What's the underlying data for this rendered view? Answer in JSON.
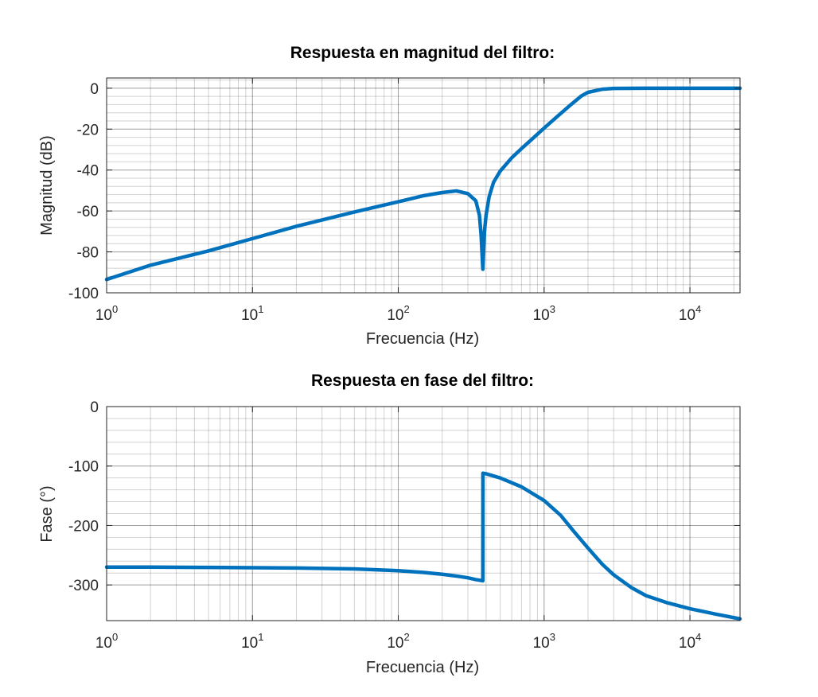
{
  "chart_data": [
    {
      "type": "line",
      "title": "Respuesta en magnitud del filtro:",
      "xlabel": "Frecuencia (Hz)",
      "ylabel": "Magnitud (dB)",
      "xscale": "log",
      "xlim": [
        1,
        22050
      ],
      "ylim": [
        -100,
        5
      ],
      "xticks": [
        {
          "value": 1,
          "base": "10",
          "exp": "0"
        },
        {
          "value": 10,
          "base": "10",
          "exp": "1"
        },
        {
          "value": 100,
          "base": "10",
          "exp": "2"
        },
        {
          "value": 1000,
          "base": "10",
          "exp": "3"
        },
        {
          "value": 10000,
          "base": "10",
          "exp": "4"
        }
      ],
      "yticks": [
        0,
        -20,
        -40,
        -60,
        -80,
        -100
      ],
      "ytick_labels": [
        "0",
        "-20",
        "-40",
        "-60",
        "-80",
        "-100"
      ],
      "grid": true,
      "color": "#0072BD",
      "series": [
        {
          "x": [
            1,
            2,
            5,
            10,
            20,
            50,
            100,
            150,
            200,
            250,
            300,
            340,
            360,
            370,
            380,
            390,
            400,
            420,
            450,
            500,
            600,
            700,
            800,
            1000,
            1200,
            1500,
            1800,
            2000,
            2500,
            3000,
            5000,
            10000,
            22050
          ],
          "y": [
            -93.5,
            -86.5,
            -79.5,
            -73.5,
            -67.5,
            -60.5,
            -55.5,
            -52.5,
            -51,
            -50.2,
            -51.5,
            -55,
            -62,
            -72,
            -88.5,
            -70,
            -62,
            -53,
            -46,
            -40.5,
            -34,
            -29.5,
            -25.8,
            -19.5,
            -14.5,
            -8.5,
            -3.8,
            -2,
            -0.5,
            -0.1,
            0,
            0,
            0
          ]
        }
      ]
    },
    {
      "type": "line",
      "title": "Respuesta en fase del filtro:",
      "xlabel": "Frecuencia (Hz)",
      "ylabel": "Fase (°)",
      "xscale": "log",
      "xlim": [
        1,
        22050
      ],
      "ylim": [
        -360,
        0
      ],
      "xticks": [
        {
          "value": 1,
          "base": "10",
          "exp": "0"
        },
        {
          "value": 10,
          "base": "10",
          "exp": "1"
        },
        {
          "value": 100,
          "base": "10",
          "exp": "2"
        },
        {
          "value": 1000,
          "base": "10",
          "exp": "3"
        },
        {
          "value": 10000,
          "base": "10",
          "exp": "4"
        }
      ],
      "yticks": [
        0,
        -100,
        -200,
        -300
      ],
      "ytick_labels": [
        "0",
        "-100",
        "-200",
        "-300"
      ],
      "grid": true,
      "color": "#0072BD",
      "series": [
        {
          "x": [
            1,
            2,
            5,
            10,
            20,
            50,
            100,
            150,
            200,
            250,
            300,
            340,
            380,
            380.5,
            400,
            500,
            700,
            1000,
            1300,
            1600,
            2000,
            2500,
            3000,
            4000,
            5000,
            7000,
            10000,
            15000,
            22050
          ],
          "y": [
            -270,
            -270,
            -270.5,
            -271,
            -271.5,
            -273,
            -276,
            -279,
            -282,
            -285,
            -288,
            -291,
            -293,
            -112,
            -113,
            -120,
            -135,
            -158,
            -183,
            -210,
            -238,
            -265,
            -283,
            -305,
            -318,
            -330,
            -340,
            -349,
            -357
          ]
        }
      ]
    }
  ]
}
